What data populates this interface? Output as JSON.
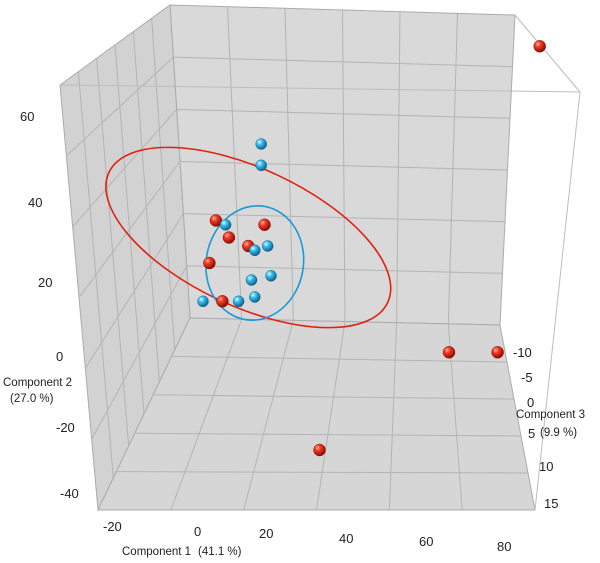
{
  "chart_data": {
    "type": "scatter",
    "projection": "3d",
    "axes": {
      "x": {
        "label": "Component 1",
        "label_pct": "(41.1 %)",
        "ticks": [
          "-20",
          "0",
          "20",
          "40",
          "60",
          "80"
        ],
        "range": [
          -25,
          85
        ]
      },
      "y": {
        "label": "Component 2",
        "label_pct": "(27.0 %)",
        "ticks": [
          "60",
          "40",
          "20",
          "0",
          "-20",
          "-40"
        ],
        "range": [
          -45,
          68
        ]
      },
      "z": {
        "label": "Component 3",
        "label_pct": "(9.9 %)",
        "ticks": [
          "-10",
          "-5",
          "0",
          "5",
          "10",
          "15"
        ],
        "range": [
          -12,
          17
        ]
      }
    },
    "grid": true,
    "series": [
      {
        "color": "#e02010",
        "points": [
          {
            "x": -12,
            "y": 34
          },
          {
            "x": -8,
            "y": 30
          },
          {
            "x": 3,
            "y": 33
          },
          {
            "x": -2,
            "y": 28
          },
          {
            "x": -14,
            "y": 24
          },
          {
            "x": -10,
            "y": 15
          },
          {
            "x": 20,
            "y": -20
          },
          {
            "x": 88,
            "y": 75
          },
          {
            "x": 60,
            "y": 3
          },
          {
            "x": 75,
            "y": 3
          }
        ]
      },
      {
        "color": "#1a9ad6",
        "points": [
          {
            "x": 2,
            "y": 52
          },
          {
            "x": 2,
            "y": 47
          },
          {
            "x": -9,
            "y": 33
          },
          {
            "x": 0,
            "y": 27
          },
          {
            "x": 4,
            "y": 28
          },
          {
            "x": 5,
            "y": 21
          },
          {
            "x": -1,
            "y": 20
          },
          {
            "x": -5,
            "y": 15
          },
          {
            "x": 0,
            "y": 16
          },
          {
            "x": -16,
            "y": 15
          }
        ]
      }
    ],
    "ellipses": [
      {
        "color": "#e02010",
        "cx": -2,
        "cy": 30,
        "rx": 19,
        "ry": 18,
        "angle": 25
      },
      {
        "color": "#1a9ad6",
        "cx": 0,
        "cy": 24,
        "rx": 6,
        "ry": 15,
        "angle": 10
      }
    ]
  }
}
